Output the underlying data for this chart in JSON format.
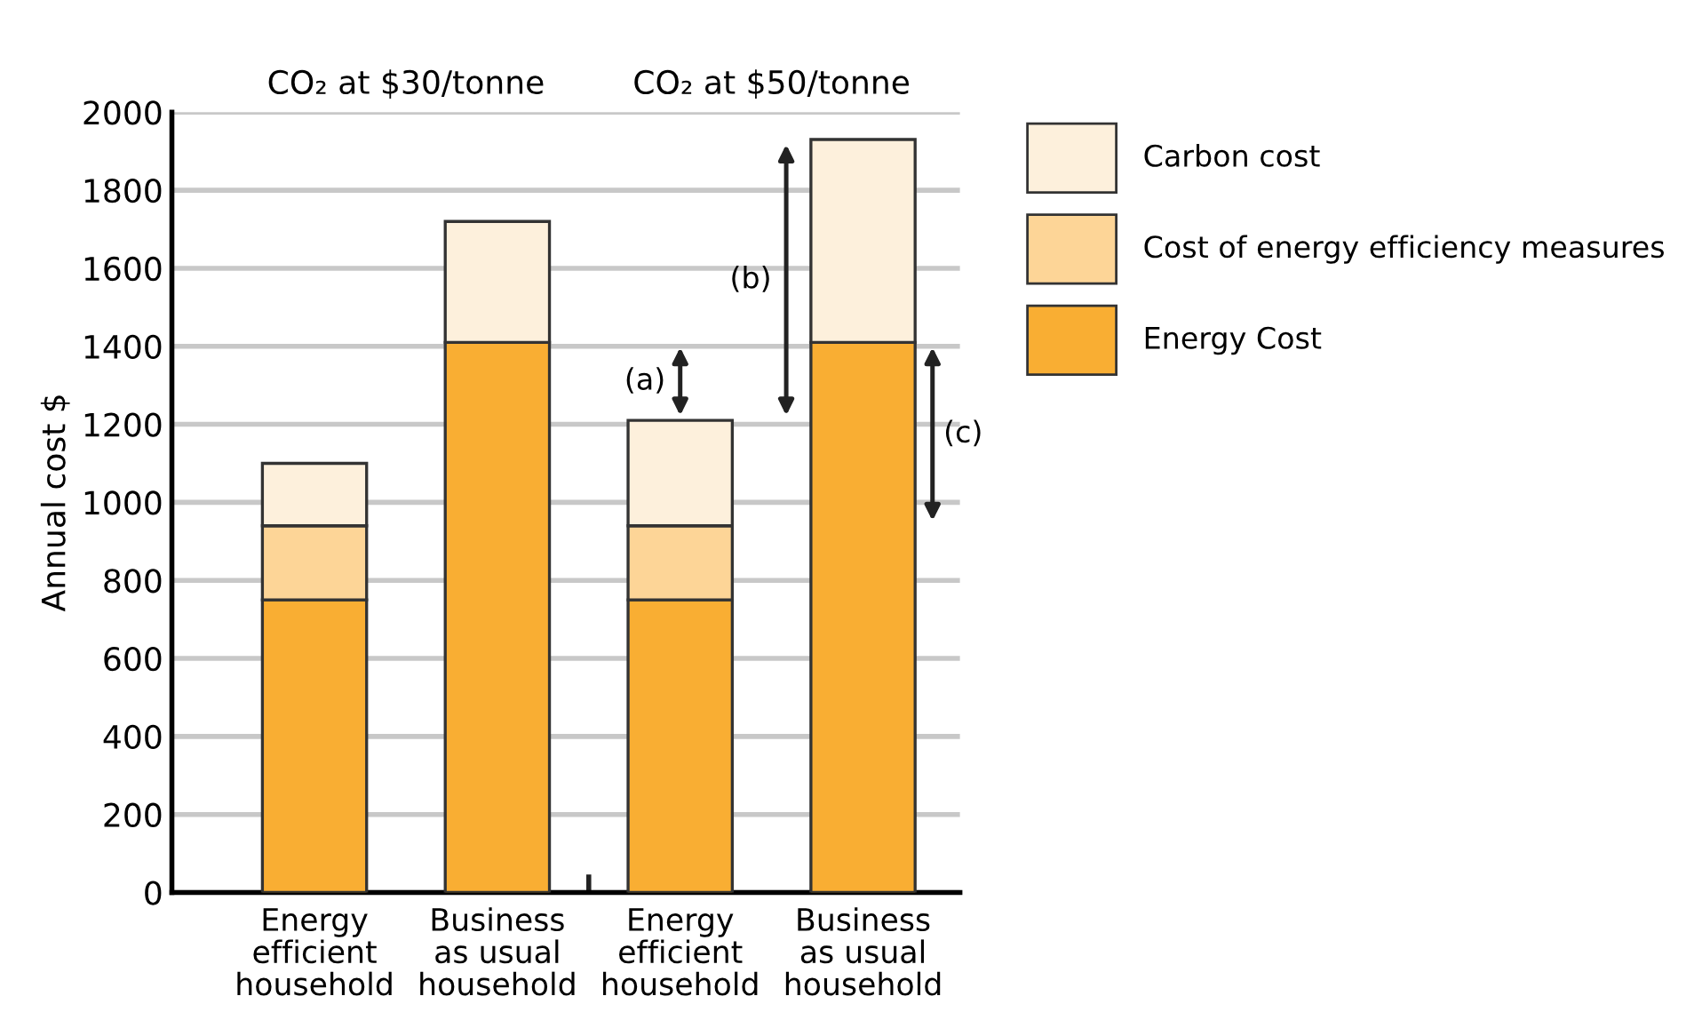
{
  "chart_data": {
    "type": "bar",
    "stacked": true,
    "ylabel": "Annual cost $",
    "categories": [
      "Energy\nefficient\nhousehold",
      "Business\nas usual\nhousehold",
      "Energy\nefficient\nhousehold",
      "Business\nas usual\nhousehold"
    ],
    "series": [
      {
        "name": "Energy Cost",
        "color": "#f9ae33",
        "values": [
          750,
          1410,
          750,
          1410
        ]
      },
      {
        "name": "Cost of energy efficiency measures",
        "color": "#fdd597",
        "values": [
          190,
          null,
          190,
          null
        ]
      },
      {
        "name": "Carbon cost",
        "color": "#fdf0dc",
        "values": [
          160,
          310,
          270,
          520
        ]
      }
    ],
    "ylim": [
      0,
      2000
    ],
    "yticks": [
      0,
      200,
      400,
      600,
      800,
      1000,
      1200,
      1400,
      1600,
      1800,
      2000
    ],
    "grid": "y",
    "legend": "right",
    "annotations": [
      "CO₂ at $30/tonne",
      "CO₂ at $50/tonne",
      "(a)",
      "(b)",
      "(c)"
    ]
  }
}
